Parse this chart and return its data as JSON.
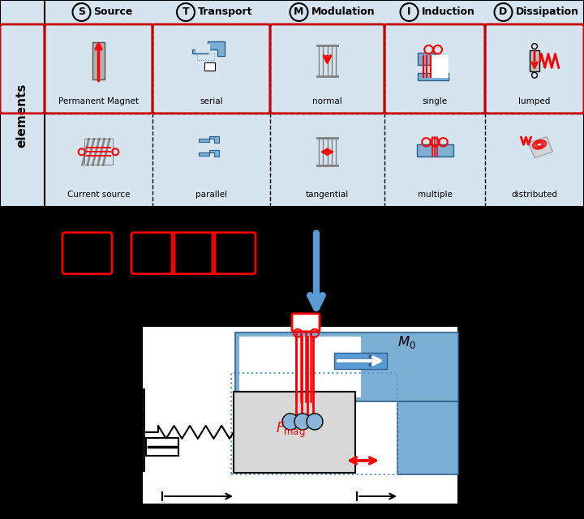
{
  "table_bg": "#d6e4f0",
  "highlight_color": "#cc0000",
  "col_headers": [
    {
      "letter": "S",
      "name": "Source"
    },
    {
      "letter": "T",
      "name": "Transport"
    },
    {
      "letter": "M",
      "name": "Modulation"
    },
    {
      "letter": "I",
      "name": "Induction"
    },
    {
      "letter": "D",
      "name": "Dissipation"
    }
  ],
  "row_label": "elements",
  "row1_labels": [
    "Permanent Magnet",
    "serial",
    "normal",
    "single",
    "lumped"
  ],
  "row2_labels": [
    "Current source",
    "parallel",
    "tangential",
    "multiple",
    "distributed"
  ],
  "blue_light": "#7bafd4",
  "blue_dark": "#2c5f8a",
  "blue_mid": "#5b9bd5",
  "arrow_blue": "#5b9bd5"
}
